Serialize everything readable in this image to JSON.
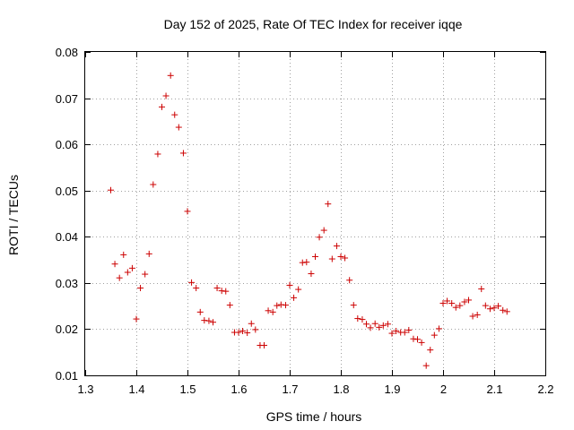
{
  "chart_data": {
    "type": "scatter",
    "title": "Day 152 of 2025, Rate Of TEC Index for receiver iqqe",
    "xlabel": "GPS time / hours",
    "ylabel": "ROTI / TECUs",
    "xlim": [
      1.3,
      2.2
    ],
    "ylim": [
      0.01,
      0.08
    ],
    "x_ticks": [
      1.3,
      1.4,
      1.5,
      1.6,
      1.7,
      1.8,
      1.9,
      2.0,
      2.1,
      2.2
    ],
    "x_tick_labels": [
      "1.3",
      "1.4",
      "1.5",
      "1.6",
      "1.7",
      "1.8",
      "1.9",
      "2",
      "2.1",
      "2.2"
    ],
    "y_ticks": [
      0.01,
      0.02,
      0.03,
      0.04,
      0.05,
      0.06,
      0.07,
      0.08
    ],
    "y_tick_labels": [
      "0.01",
      "0.02",
      "0.03",
      "0.04",
      "0.05",
      "0.06",
      "0.07",
      "0.08"
    ],
    "grid": true,
    "marker": "+",
    "color": "#cc0000",
    "series": [
      {
        "x": [
          1.35,
          1.358,
          1.367,
          1.375,
          1.383,
          1.392,
          1.4,
          1.408,
          1.417,
          1.425,
          1.433,
          1.442,
          1.45,
          1.458,
          1.467,
          1.475,
          1.483,
          1.492,
          1.5,
          1.508,
          1.517,
          1.525,
          1.533,
          1.542,
          1.55,
          1.558,
          1.567,
          1.575,
          1.583,
          1.592,
          1.6,
          1.608,
          1.617,
          1.625,
          1.633,
          1.642,
          1.65,
          1.658,
          1.667,
          1.675,
          1.683,
          1.692,
          1.7,
          1.708,
          1.717,
          1.725,
          1.733,
          1.742,
          1.75,
          1.758,
          1.767,
          1.775,
          1.783,
          1.792,
          1.8,
          1.808,
          1.817,
          1.825,
          1.833,
          1.842,
          1.85,
          1.858,
          1.867,
          1.875,
          1.883,
          1.892,
          1.9,
          1.908,
          1.917,
          1.925,
          1.933,
          1.942,
          1.95,
          1.958,
          1.967,
          1.975,
          1.983,
          1.992,
          2.0,
          2.008,
          2.017,
          2.025,
          2.033,
          2.042,
          2.05,
          2.058,
          2.067,
          2.075,
          2.083,
          2.092,
          2.1,
          2.108,
          2.117,
          2.125
        ],
        "y": [
          0.0501,
          0.0341,
          0.0311,
          0.0361,
          0.0323,
          0.0332,
          0.0222,
          0.0289,
          0.0319,
          0.0363,
          0.0513,
          0.0579,
          0.0681,
          0.0705,
          0.0749,
          0.0664,
          0.0637,
          0.0581,
          0.0455,
          0.0301,
          0.0289,
          0.0237,
          0.0219,
          0.0218,
          0.0215,
          0.0289,
          0.0283,
          0.0282,
          0.0252,
          0.0193,
          0.0193,
          0.0196,
          0.0192,
          0.0212,
          0.0199,
          0.0165,
          0.0165,
          0.024,
          0.0237,
          0.0251,
          0.0253,
          0.0252,
          0.0295,
          0.0268,
          0.0286,
          0.0344,
          0.0345,
          0.032,
          0.0357,
          0.0399,
          0.0414,
          0.0471,
          0.0352,
          0.038,
          0.0357,
          0.0354,
          0.0306,
          0.0252,
          0.0223,
          0.0221,
          0.0211,
          0.0203,
          0.0212,
          0.0204,
          0.0208,
          0.0211,
          0.0191,
          0.0196,
          0.0193,
          0.0193,
          0.0198,
          0.0179,
          0.0178,
          0.0171,
          0.0121,
          0.0155,
          0.0187,
          0.0201,
          0.0256,
          0.0261,
          0.0256,
          0.0247,
          0.0251,
          0.0259,
          0.0263,
          0.0228,
          0.0231,
          0.0287,
          0.0251,
          0.0244,
          0.0246,
          0.025,
          0.0241,
          0.0238
        ]
      }
    ]
  }
}
